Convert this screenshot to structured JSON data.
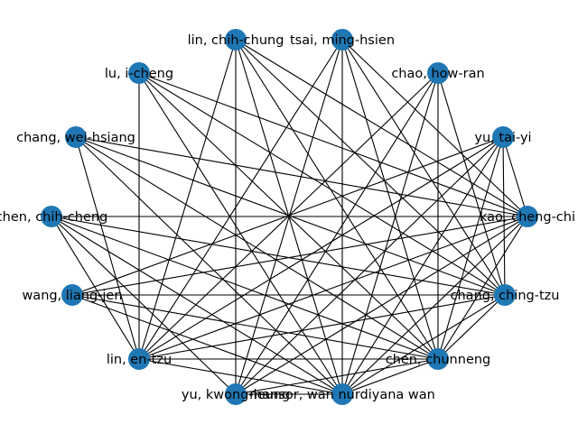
{
  "nodes": [
    {
      "id": "n0",
      "label": "lin, chih-chung"
    },
    {
      "id": "n1",
      "label": "tsai, ming-hsien"
    },
    {
      "id": "n2",
      "label": "lu, i-cheng"
    },
    {
      "id": "n3",
      "label": "chao, how-ran"
    },
    {
      "id": "n4",
      "label": "chang, wei-hsiang"
    },
    {
      "id": "n5",
      "label": "yu, tai-yi"
    },
    {
      "id": "n6",
      "label": "chen, chih-cheng"
    },
    {
      "id": "n7",
      "label": "kao, cheng-chi"
    },
    {
      "id": "n8",
      "label": "wang, liang-jen"
    },
    {
      "id": "n9",
      "label": "chang, ching-tzu"
    },
    {
      "id": "n10",
      "label": "lin, en-tzu"
    },
    {
      "id": "n11",
      "label": "chen, chunneng"
    },
    {
      "id": "n12",
      "label": "yu, kwong-leung"
    },
    {
      "id": "n13",
      "label": "mansor, wan nurdiyana wan"
    }
  ],
  "edges": [
    [
      "n0",
      "n7"
    ],
    [
      "n0",
      "n9"
    ],
    [
      "n0",
      "n11"
    ],
    [
      "n0",
      "n13"
    ],
    [
      "n0",
      "n10"
    ],
    [
      "n0",
      "n12"
    ],
    [
      "n1",
      "n7"
    ],
    [
      "n1",
      "n9"
    ],
    [
      "n1",
      "n11"
    ],
    [
      "n1",
      "n13"
    ],
    [
      "n1",
      "n10"
    ],
    [
      "n1",
      "n12"
    ],
    [
      "n2",
      "n7"
    ],
    [
      "n2",
      "n9"
    ],
    [
      "n2",
      "n11"
    ],
    [
      "n2",
      "n13"
    ],
    [
      "n2",
      "n10"
    ],
    [
      "n3",
      "n9"
    ],
    [
      "n3",
      "n11"
    ],
    [
      "n3",
      "n13"
    ],
    [
      "n3",
      "n10"
    ],
    [
      "n3",
      "n12"
    ],
    [
      "n4",
      "n7"
    ],
    [
      "n4",
      "n9"
    ],
    [
      "n4",
      "n11"
    ],
    [
      "n4",
      "n13"
    ],
    [
      "n4",
      "n10"
    ],
    [
      "n5",
      "n7"
    ],
    [
      "n5",
      "n9"
    ],
    [
      "n5",
      "n11"
    ],
    [
      "n5",
      "n13"
    ],
    [
      "n5",
      "n10"
    ],
    [
      "n5",
      "n8"
    ],
    [
      "n5",
      "n12"
    ],
    [
      "n6",
      "n7"
    ],
    [
      "n6",
      "n9"
    ],
    [
      "n6",
      "n11"
    ],
    [
      "n6",
      "n13"
    ],
    [
      "n6",
      "n10"
    ],
    [
      "n6",
      "n12"
    ],
    [
      "n7",
      "n8"
    ],
    [
      "n7",
      "n10"
    ],
    [
      "n7",
      "n11"
    ],
    [
      "n7",
      "n12"
    ],
    [
      "n7",
      "n13"
    ],
    [
      "n8",
      "n9"
    ],
    [
      "n8",
      "n11"
    ],
    [
      "n8",
      "n13"
    ],
    [
      "n9",
      "n10"
    ],
    [
      "n9",
      "n13"
    ],
    [
      "n9",
      "n11"
    ],
    [
      "n10",
      "n11"
    ],
    [
      "n10",
      "n13"
    ],
    [
      "n11",
      "n13"
    ],
    [
      "n11",
      "n12"
    ],
    [
      "n12",
      "n13"
    ]
  ]
}
